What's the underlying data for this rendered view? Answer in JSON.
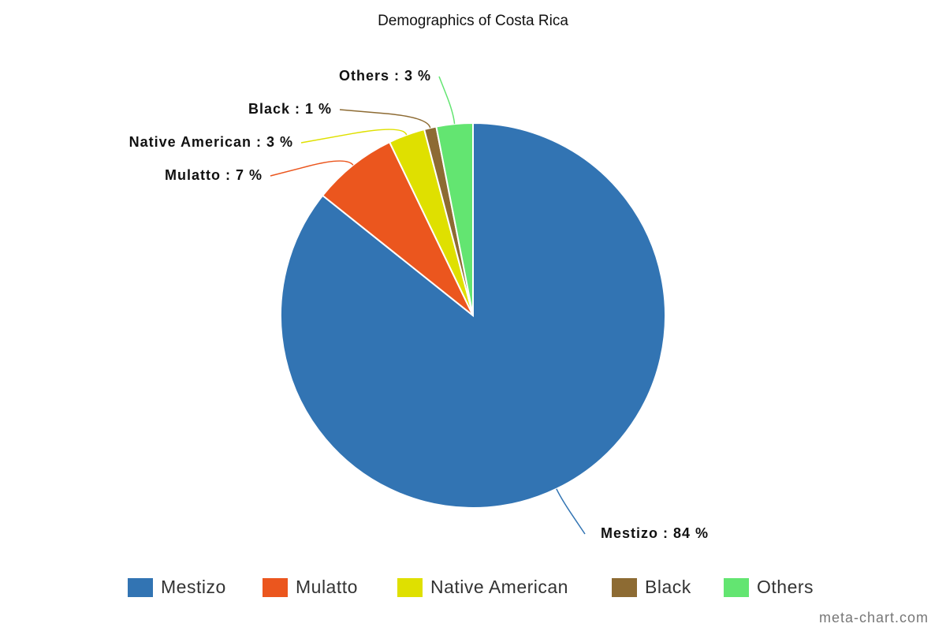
{
  "chart_data": {
    "type": "pie",
    "title": "Demographics of Costa Rica",
    "categories": [
      "Mestizo",
      "Mulatto",
      "Native American",
      "Black",
      "Others"
    ],
    "values": [
      84,
      7,
      3,
      1,
      3
    ],
    "value_labels": [
      "Mestizo : 84 %",
      "Mulatto : 7 %",
      "Native American : 3 %",
      "Black : 1 %",
      "Others : 3 %"
    ],
    "colors": [
      "#3274b3",
      "#eb561e",
      "#dfe000",
      "#8d6b33",
      "#63e571"
    ],
    "legend": "bottom",
    "watermark": "meta-chart.com"
  }
}
